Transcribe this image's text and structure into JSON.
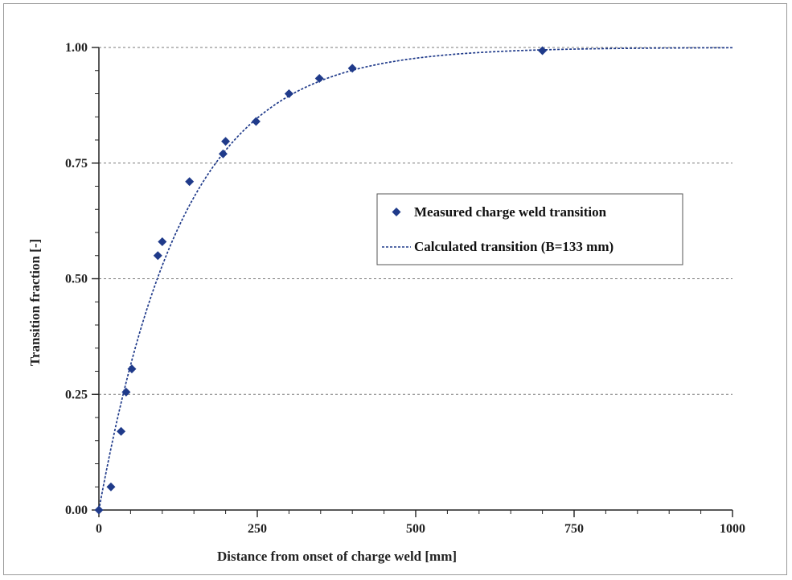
{
  "chart_data": {
    "type": "scatter",
    "title": "",
    "xlabel": "Distance  from onset of charge weld [mm]",
    "ylabel": "Transition  fraction [-]",
    "xlim": [
      0,
      1000
    ],
    "ylim": [
      0,
      1
    ],
    "x_ticks": [
      0,
      250,
      500,
      750,
      1000
    ],
    "x_tick_labels": [
      "0",
      "250",
      "500",
      "750",
      "1000"
    ],
    "y_ticks": [
      0,
      0.25,
      0.5,
      0.75,
      1
    ],
    "y_tick_labels": [
      "0.00",
      "0.25",
      "0.50",
      "0.75",
      "1.00"
    ],
    "x_minor_step": 50,
    "y_minor_step": 0.05,
    "grid": "horizontal dotted at major y ticks",
    "legend_position": "right-center",
    "series": [
      {
        "name": "Measured charge weld transition",
        "kind": "markers",
        "marker": "diamond",
        "color": "#1f3a8a",
        "points": [
          {
            "x": 0,
            "y": 0.0
          },
          {
            "x": 19,
            "y": 0.05
          },
          {
            "x": 35,
            "y": 0.17
          },
          {
            "x": 43,
            "y": 0.255
          },
          {
            "x": 52,
            "y": 0.305
          },
          {
            "x": 93,
            "y": 0.55
          },
          {
            "x": 100,
            "y": 0.58
          },
          {
            "x": 143,
            "y": 0.71
          },
          {
            "x": 196,
            "y": 0.77
          },
          {
            "x": 200,
            "y": 0.797
          },
          {
            "x": 248,
            "y": 0.84
          },
          {
            "x": 300,
            "y": 0.9
          },
          {
            "x": 348,
            "y": 0.933
          },
          {
            "x": 400,
            "y": 0.955
          },
          {
            "x": 700,
            "y": 0.993
          }
        ]
      },
      {
        "name": "Calculated transition (B=133 mm)",
        "kind": "dashed-line",
        "color": "#1f3a8a",
        "B": 133
      }
    ]
  }
}
